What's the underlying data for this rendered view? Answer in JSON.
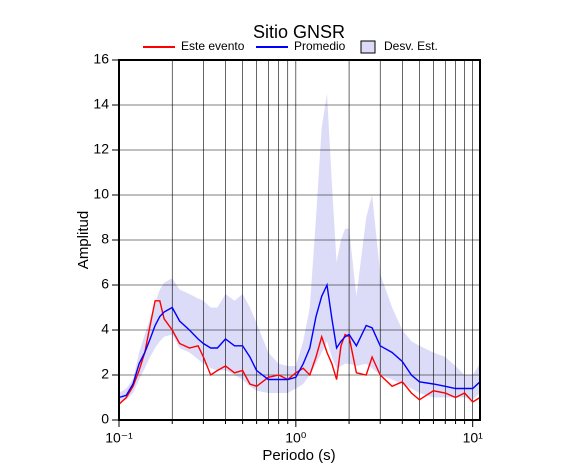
{
  "chart_data": {
    "type": "line",
    "title": "Sitio GNSR",
    "x_label": "Periodo (s)",
    "y_label": "Amplitud",
    "log_x": true,
    "grid": true,
    "xlim": [
      0.1,
      11
    ],
    "ylim": [
      0,
      16
    ],
    "xticks": [
      {
        "value": 0.1,
        "label": "10⁻¹"
      },
      {
        "value": 1,
        "label": "10⁰"
      },
      {
        "value": 10,
        "label": "10¹"
      }
    ],
    "xgrid": [
      0.2,
      0.3,
      0.4,
      0.5,
      0.6,
      0.7,
      0.8,
      0.9,
      2,
      3,
      4,
      5,
      6,
      7,
      8,
      9
    ],
    "yticks": [
      0,
      2,
      4,
      6,
      8,
      10,
      12,
      14,
      16
    ],
    "x": [
      0.1,
      0.11,
      0.12,
      0.13,
      0.14,
      0.15,
      0.16,
      0.17,
      0.18,
      0.2,
      0.22,
      0.25,
      0.28,
      0.3,
      0.33,
      0.36,
      0.4,
      0.45,
      0.5,
      0.55,
      0.6,
      0.7,
      0.8,
      0.9,
      1,
      1.1,
      1.2,
      1.3,
      1.4,
      1.5,
      1.6,
      1.7,
      1.8,
      1.9,
      2,
      2.2,
      2.5,
      2.7,
      3,
      3.5,
      4,
      4.5,
      5,
      6,
      7,
      8,
      9,
      10,
      11
    ],
    "band": {
      "name": "Desv. Est.",
      "color": "#dcdcf8",
      "edge": "#000000",
      "lower": [
        0.8,
        0.9,
        1.2,
        1.8,
        2.3,
        2.8,
        3.2,
        3.5,
        3.7,
        3.8,
        3.2,
        3.0,
        2.7,
        2.5,
        2.3,
        2.2,
        2.2,
        2.0,
        1.8,
        1.5,
        1.3,
        1.2,
        1.2,
        1.2,
        1.4,
        1.6,
        2.0,
        2.5,
        3.0,
        3.5,
        2.8,
        2.3,
        2.4,
        2.5,
        2.5,
        2.4,
        2.5,
        2.3,
        2.0,
        1.8,
        1.6,
        1.4,
        1.2,
        1.0,
        1.0,
        1.0,
        1.0,
        0.9,
        1.2
      ],
      "upper": [
        1.2,
        1.4,
        1.8,
        3.0,
        3.8,
        4.5,
        5.2,
        5.8,
        6.1,
        6.3,
        5.8,
        5.6,
        5.4,
        5.3,
        5.0,
        5.0,
        5.6,
        5.3,
        5.6,
        5.0,
        4.3,
        3.0,
        2.5,
        2.4,
        2.4,
        3.5,
        5.0,
        9.0,
        13.0,
        14.5,
        10.5,
        7.0,
        8.0,
        8.5,
        8.5,
        5.5,
        9.0,
        10.0,
        6.5,
        5.0,
        4.0,
        3.5,
        3.3,
        3.0,
        2.8,
        2.4,
        2.0,
        2.0,
        2.5
      ]
    },
    "series": [
      {
        "name": "Este evento",
        "color": "#ff0000",
        "values": [
          0.7,
          1.0,
          1.5,
          2.2,
          3.0,
          4.2,
          5.3,
          5.3,
          4.5,
          4.0,
          3.4,
          3.2,
          3.3,
          2.8,
          2.0,
          2.2,
          2.4,
          2.1,
          2.2,
          1.6,
          1.5,
          1.9,
          2.0,
          1.8,
          2.1,
          2.3,
          2.0,
          2.8,
          3.7,
          3.0,
          2.5,
          1.8,
          3.3,
          3.8,
          3.7,
          2.1,
          2.0,
          2.8,
          2.0,
          1.5,
          1.7,
          1.2,
          0.9,
          1.3,
          1.2,
          1.0,
          1.2,
          0.8,
          1.0
        ]
      },
      {
        "name": "Promedio",
        "color": "#0000ff",
        "values": [
          1.0,
          1.1,
          1.6,
          2.5,
          3.0,
          3.6,
          4.2,
          4.6,
          4.8,
          5.0,
          4.4,
          4.0,
          3.6,
          3.4,
          3.2,
          3.2,
          3.6,
          3.3,
          3.3,
          2.8,
          2.2,
          1.8,
          1.8,
          1.8,
          1.9,
          2.5,
          3.2,
          4.6,
          5.5,
          6.0,
          4.5,
          3.2,
          3.5,
          3.7,
          3.8,
          3.3,
          4.2,
          4.1,
          3.3,
          3.0,
          2.6,
          2.0,
          1.7,
          1.6,
          1.5,
          1.4,
          1.4,
          1.4,
          1.7
        ]
      }
    ]
  }
}
